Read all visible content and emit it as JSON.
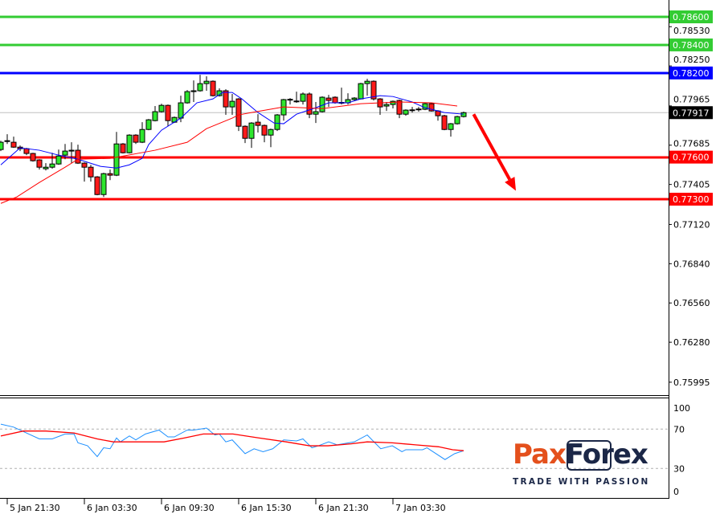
{
  "chart_data": {
    "type": "candlestick",
    "timeframe_minutes": 30,
    "first_candle_time": "5 Jan 21:00",
    "price_axis": {
      "ticks": [
        "0.78530",
        "0.78250",
        "0.77965",
        "0.77685",
        "0.77405",
        "0.77120",
        "0.76840",
        "0.76560",
        "0.76280",
        "0.75995"
      ],
      "range": [
        0.7576,
        0.7872
      ]
    },
    "time_axis": {
      "ticks": [
        {
          "index": 1,
          "label": "5 Jan 21:30"
        },
        {
          "index": 13,
          "label": "6 Jan 03:30"
        },
        {
          "index": 25,
          "label": "6 Jan 09:30"
        },
        {
          "index": 37,
          "label": "6 Jan 15:30"
        },
        {
          "index": 49,
          "label": "6 Jan 21:30"
        },
        {
          "index": 61,
          "label": "7 Jan 03:30"
        }
      ]
    },
    "candles_ohlc": [
      [
        0.77654,
        0.77717,
        0.77643,
        0.77706
      ],
      [
        0.77712,
        0.77763,
        0.77694,
        0.77717
      ],
      [
        0.77706,
        0.77746,
        0.77666,
        0.77671
      ],
      [
        0.77671,
        0.77683,
        0.77643,
        0.7766
      ],
      [
        0.7766,
        0.77666,
        0.77614,
        0.77626
      ],
      [
        0.77626,
        0.77631,
        0.77568,
        0.77574
      ],
      [
        0.7758,
        0.77585,
        0.77511,
        0.77528
      ],
      [
        0.77517,
        0.77557,
        0.77505,
        0.77528
      ],
      [
        0.77528,
        0.77631,
        0.77517,
        0.77551
      ],
      [
        0.77551,
        0.77654,
        0.77545,
        0.77608
      ],
      [
        0.77614,
        0.77694,
        0.77585,
        0.77643
      ],
      [
        0.77643,
        0.77706,
        0.77557,
        0.77649
      ],
      [
        0.77649,
        0.77689,
        0.77551,
        0.77557
      ],
      [
        0.77557,
        0.77563,
        0.77425,
        0.77528
      ],
      [
        0.77528,
        0.77545,
        0.77425,
        0.77459
      ],
      [
        0.77459,
        0.77465,
        0.77328,
        0.77333
      ],
      [
        0.77333,
        0.77488,
        0.77316,
        0.77482
      ],
      [
        0.77482,
        0.77511,
        0.77436,
        0.77471
      ],
      [
        0.77471,
        0.7778,
        0.77465,
        0.77694
      ],
      [
        0.77694,
        0.777,
        0.77626,
        0.77631
      ],
      [
        0.77631,
        0.77763,
        0.77626,
        0.77757
      ],
      [
        0.77757,
        0.77763,
        0.77694,
        0.77706
      ],
      [
        0.77706,
        0.77849,
        0.777,
        0.77797
      ],
      [
        0.77797,
        0.77872,
        0.77792,
        0.77866
      ],
      [
        0.7786,
        0.77964,
        0.77855,
        0.77924
      ],
      [
        0.77924,
        0.77981,
        0.77918,
        0.77969
      ],
      [
        0.77969,
        0.77975,
        0.7782,
        0.7786
      ],
      [
        0.77849,
        0.77889,
        0.77843,
        0.77883
      ],
      [
        0.77878,
        0.78038,
        0.77849,
        0.77987
      ],
      [
        0.77987,
        0.78078,
        0.77981,
        0.78067
      ],
      [
        0.78067,
        0.78147,
        0.77993,
        0.78073
      ],
      [
        0.78073,
        0.78187,
        0.78067,
        0.78124
      ],
      [
        0.78124,
        0.78176,
        0.78073,
        0.78141
      ],
      [
        0.78141,
        0.78147,
        0.78032,
        0.78038
      ],
      [
        0.78038,
        0.7809,
        0.78032,
        0.78073
      ],
      [
        0.78073,
        0.78084,
        0.77901,
        0.77958
      ],
      [
        0.77958,
        0.7805,
        0.77901,
        0.77998
      ],
      [
        0.78015,
        0.78021,
        0.77786,
        0.7782
      ],
      [
        0.7782,
        0.77826,
        0.777,
        0.77734
      ],
      [
        0.77734,
        0.77849,
        0.77666,
        0.77843
      ],
      [
        0.77849,
        0.77906,
        0.77775,
        0.77826
      ],
      [
        0.77826,
        0.77832,
        0.77706,
        0.77757
      ],
      [
        0.77757,
        0.77803,
        0.77671,
        0.77797
      ],
      [
        0.77797,
        0.77907,
        0.77786,
        0.77901
      ],
      [
        0.77901,
        0.78015,
        0.7786,
        0.7801
      ],
      [
        0.78012,
        0.78021,
        0.77975,
        0.78008
      ],
      [
        0.77998,
        0.78067,
        0.77987,
        0.78
      ],
      [
        0.77998,
        0.78061,
        0.77975,
        0.7805
      ],
      [
        0.7805,
        0.78061,
        0.77878,
        0.77906
      ],
      [
        0.77906,
        0.77993,
        0.77843,
        0.77924
      ],
      [
        0.77924,
        0.78033,
        0.77918,
        0.78027
      ],
      [
        0.78021,
        0.78044,
        0.77958,
        0.78004
      ],
      [
        0.78027,
        0.78033,
        0.77981,
        0.77987
      ],
      [
        0.77987,
        0.78095,
        0.77975,
        0.7799
      ],
      [
        0.77987,
        0.78055,
        0.77975,
        0.7801
      ],
      [
        0.7801,
        0.78027,
        0.78004,
        0.78021
      ],
      [
        0.78015,
        0.7813,
        0.7801,
        0.78124
      ],
      [
        0.78124,
        0.78158,
        0.78038,
        0.78141
      ],
      [
        0.78141,
        0.78147,
        0.78004,
        0.78015
      ],
      [
        0.78015,
        0.78021,
        0.77901,
        0.77958
      ],
      [
        0.77964,
        0.77993,
        0.77929,
        0.77975
      ],
      [
        0.77975,
        0.78004,
        0.77947,
        0.77998
      ],
      [
        0.78004,
        0.7801,
        0.77878,
        0.77906
      ],
      [
        0.77906,
        0.77941,
        0.77895,
        0.77935
      ],
      [
        0.77935,
        0.77958,
        0.77918,
        0.77937
      ],
      [
        0.77941,
        0.77958,
        0.77924,
        0.77943
      ],
      [
        0.77941,
        0.77987,
        0.77935,
        0.77981
      ],
      [
        0.77981,
        0.77987,
        0.77924,
        0.77929
      ],
      [
        0.77929,
        0.77935,
        0.7786,
        0.77895
      ],
      [
        0.77895,
        0.77901,
        0.77792,
        0.77797
      ],
      [
        0.77797,
        0.77843,
        0.77746,
        0.77838
      ],
      [
        0.77838,
        0.77895,
        0.77832,
        0.77889
      ],
      [
        0.77889,
        0.77924,
        0.77883,
        0.77917
      ]
    ],
    "moving_averages": [
      {
        "color": "#0000ff",
        "points": [
          [
            0,
            0.77545
          ],
          [
            3,
            0.77666
          ],
          [
            6,
            0.77649
          ],
          [
            9,
            0.77614
          ],
          [
            12,
            0.77585
          ],
          [
            15.5,
            0.77534
          ],
          [
            18,
            0.77522
          ],
          [
            20,
            0.77545
          ],
          [
            22,
            0.77591
          ],
          [
            23,
            0.77689
          ],
          [
            25,
            0.77792
          ],
          [
            28,
            0.77878
          ],
          [
            30.5,
            0.77987
          ],
          [
            33,
            0.78015
          ],
          [
            34.5,
            0.78061
          ],
          [
            36,
            0.78061
          ],
          [
            37.5,
            0.78015
          ],
          [
            40,
            0.77918
          ],
          [
            42.5,
            0.77843
          ],
          [
            44,
            0.77838
          ],
          [
            46,
            0.77906
          ],
          [
            49,
            0.77952
          ],
          [
            51,
            0.77987
          ],
          [
            54,
            0.77987
          ],
          [
            56,
            0.78015
          ],
          [
            59,
            0.78038
          ],
          [
            61,
            0.78032
          ],
          [
            64,
            0.77993
          ],
          [
            66,
            0.77952
          ],
          [
            69,
            0.77918
          ],
          [
            72,
            0.77906
          ]
        ]
      },
      {
        "color": "#ff0000",
        "points": [
          [
            0,
            0.7727
          ],
          [
            2.5,
            0.77316
          ],
          [
            6,
            0.77419
          ],
          [
            10,
            0.77528
          ],
          [
            12,
            0.77585
          ],
          [
            17,
            0.77591
          ],
          [
            24,
            0.77649
          ],
          [
            29,
            0.77706
          ],
          [
            32,
            0.77803
          ],
          [
            36,
            0.77878
          ],
          [
            37,
            0.77901
          ],
          [
            39,
            0.77918
          ],
          [
            44,
            0.77958
          ],
          [
            50,
            0.77946
          ],
          [
            56,
            0.77981
          ],
          [
            62,
            0.77993
          ],
          [
            67,
            0.77987
          ],
          [
            71,
            0.77964
          ]
        ]
      }
    ],
    "levels": [
      {
        "price": 0.786,
        "label": "0.78600",
        "color": "#33cc33"
      },
      {
        "price": 0.784,
        "label": "0.78400",
        "color": "#33cc33"
      },
      {
        "price": 0.782,
        "label": "0.78200",
        "color": "#0000ff"
      },
      {
        "price": 0.776,
        "label": "0.77600",
        "color": "#ff0000"
      },
      {
        "price": 0.773,
        "label": "0.77300",
        "color": "#ff0000"
      }
    ],
    "current_price": {
      "price": 0.77917,
      "label": "0.77917",
      "color": "#000000"
    },
    "forecast_arrow": {
      "direction": "down",
      "from": [
        72.8,
        0.77917
      ],
      "to": [
        80,
        0.7736
      ],
      "color": "#ff0000"
    },
    "oscillator": {
      "range": [
        0,
        100
      ],
      "ticks": [
        "100",
        "70",
        "30",
        "0"
      ],
      "levels": [
        70,
        30
      ],
      "main": {
        "color": "#1e90ff",
        "points": [
          [
            0,
            75
          ],
          [
            2,
            72
          ],
          [
            6,
            60
          ],
          [
            8,
            60
          ],
          [
            10,
            65
          ],
          [
            11.4,
            65
          ],
          [
            12,
            56
          ],
          [
            13.5,
            53
          ],
          [
            15,
            42
          ],
          [
            16,
            51
          ],
          [
            17,
            50
          ],
          [
            18,
            61
          ],
          [
            18.6,
            57
          ],
          [
            20,
            63
          ],
          [
            21,
            59
          ],
          [
            22.5,
            65
          ],
          [
            24.6,
            69
          ],
          [
            26,
            62
          ],
          [
            27,
            62
          ],
          [
            29,
            69
          ],
          [
            30,
            69
          ],
          [
            32,
            71
          ],
          [
            33.3,
            64
          ],
          [
            34,
            65
          ],
          [
            35,
            57
          ],
          [
            36,
            59
          ],
          [
            38,
            45
          ],
          [
            39.4,
            50
          ],
          [
            40.8,
            47
          ],
          [
            42.3,
            50
          ],
          [
            44,
            59
          ],
          [
            46,
            58
          ],
          [
            47,
            60
          ],
          [
            48.4,
            51
          ],
          [
            49.4,
            53
          ],
          [
            51,
            57
          ],
          [
            52.3,
            54
          ],
          [
            55,
            57
          ],
          [
            57,
            64
          ],
          [
            59.1,
            50
          ],
          [
            60.9,
            53
          ],
          [
            62.4,
            47
          ],
          [
            63,
            49
          ],
          [
            65.6,
            49
          ],
          [
            66.3,
            51
          ],
          [
            69.1,
            39
          ],
          [
            70.6,
            45
          ],
          [
            72,
            48
          ]
        ]
      },
      "signal": {
        "color": "#ff0000",
        "points": [
          [
            0,
            63
          ],
          [
            3.5,
            68
          ],
          [
            7,
            68
          ],
          [
            11.4,
            66
          ],
          [
            15,
            60
          ],
          [
            17.5,
            57
          ],
          [
            21.4,
            57
          ],
          [
            25.4,
            57
          ],
          [
            28.6,
            61
          ],
          [
            31.5,
            65
          ],
          [
            36.1,
            65
          ],
          [
            40.1,
            61
          ],
          [
            44.4,
            57
          ],
          [
            48,
            53
          ],
          [
            50.9,
            53
          ],
          [
            54.5,
            55
          ],
          [
            57,
            57
          ],
          [
            60.9,
            56
          ],
          [
            64.5,
            54
          ],
          [
            68.1,
            52
          ],
          [
            70.3,
            49
          ],
          [
            72,
            48
          ]
        ]
      }
    },
    "grid": false
  },
  "branding": {
    "logo_text_left": "Pax",
    "logo_text_right": "Forex",
    "tagline": "TRADE WITH PASSION"
  },
  "colors": {
    "bull": "#2ee62e",
    "bear": "#ff1a1a",
    "logo_orange": "#e4501c",
    "logo_navy": "#1b2747"
  }
}
